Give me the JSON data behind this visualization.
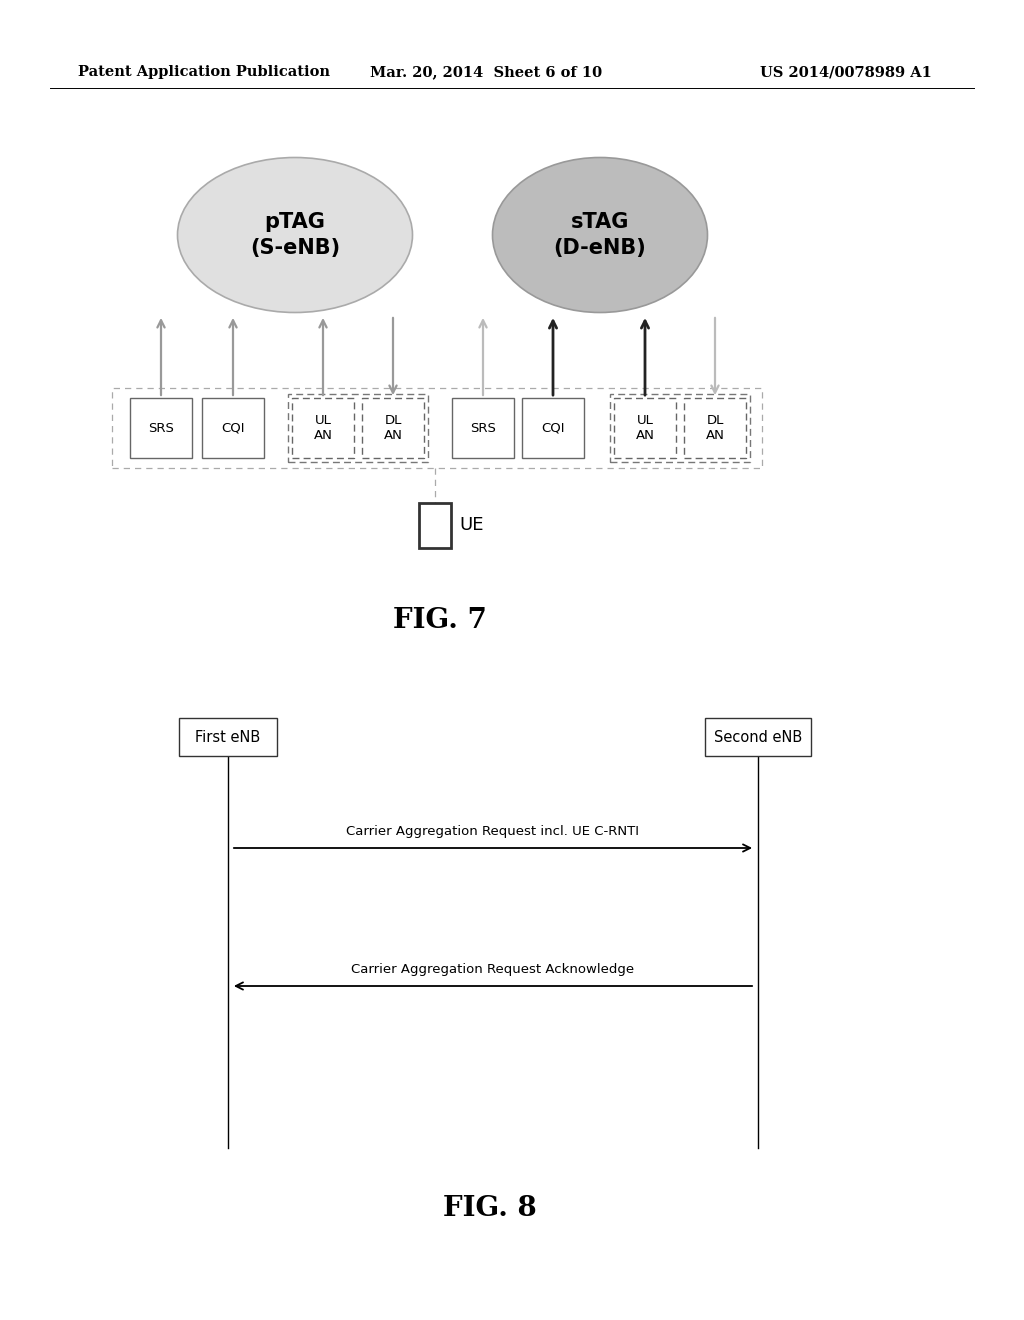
{
  "header_left": "Patent Application Publication",
  "header_mid": "Mar. 20, 2014  Sheet 6 of 10",
  "header_right": "US 2014/0078989 A1",
  "fig7_label": "FIG. 7",
  "fig8_label": "FIG. 8",
  "ptag_label": "pTAG\n(S-eNB)",
  "stag_label": "sTAG\n(D-eNB)",
  "ptag_color": "#e2e2e2",
  "stag_color": "#c0c0c0",
  "ue_label": "UE",
  "first_enb_label": "First eNB",
  "second_enb_label": "Second eNB",
  "msg1_label": "Carrier Aggregation Request incl. UE C-RNTI",
  "msg2_label": "Carrier Aggregation Request Acknowledge",
  "bg_color": "#ffffff"
}
